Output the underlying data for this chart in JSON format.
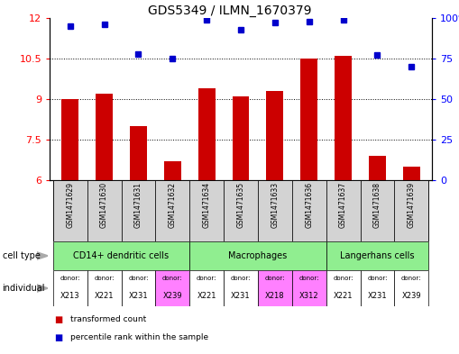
{
  "title": "GDS5349 / ILMN_1670379",
  "samples": [
    "GSM1471629",
    "GSM1471630",
    "GSM1471631",
    "GSM1471632",
    "GSM1471634",
    "GSM1471635",
    "GSM1471633",
    "GSM1471636",
    "GSM1471637",
    "GSM1471638",
    "GSM1471639"
  ],
  "transformed_count": [
    9.0,
    9.2,
    8.0,
    6.7,
    9.4,
    9.1,
    9.3,
    10.5,
    10.6,
    6.9,
    6.5
  ],
  "percentile_rank": [
    95,
    96,
    78,
    75,
    99,
    93,
    97,
    98,
    99,
    77,
    70
  ],
  "ylim_left": [
    6,
    12
  ],
  "ylim_right": [
    0,
    100
  ],
  "yticks_left": [
    6,
    7.5,
    9,
    10.5,
    12
  ],
  "yticks_right": [
    0,
    25,
    50,
    75,
    100
  ],
  "cell_type_groups": [
    {
      "label": "CD14+ dendritic cells",
      "start": 0,
      "end": 4,
      "color": "#90ee90"
    },
    {
      "label": "Macrophages",
      "start": 4,
      "end": 8,
      "color": "#90ee90"
    },
    {
      "label": "Langerhans cells",
      "start": 8,
      "end": 11,
      "color": "#90ee90"
    }
  ],
  "individuals": [
    {
      "donor": "X213",
      "col": 0,
      "color": "#ffffff"
    },
    {
      "donor": "X221",
      "col": 1,
      "color": "#ffffff"
    },
    {
      "donor": "X231",
      "col": 2,
      "color": "#ffffff"
    },
    {
      "donor": "X239",
      "col": 3,
      "color": "#ff80ff"
    },
    {
      "donor": "X221",
      "col": 4,
      "color": "#ffffff"
    },
    {
      "donor": "X231",
      "col": 5,
      "color": "#ffffff"
    },
    {
      "donor": "X218",
      "col": 6,
      "color": "#ff80ff"
    },
    {
      "donor": "X312",
      "col": 7,
      "color": "#ff80ff"
    },
    {
      "donor": "X221",
      "col": 8,
      "color": "#ffffff"
    },
    {
      "donor": "X231",
      "col": 9,
      "color": "#ffffff"
    },
    {
      "donor": "X239",
      "col": 10,
      "color": "#ffffff"
    }
  ],
  "bar_color": "#cc0000",
  "dot_color": "#0000cc",
  "background_color": "#ffffff",
  "sample_bg_color": "#d3d3d3",
  "figsize": [
    5.09,
    3.93
  ],
  "dpi": 100
}
